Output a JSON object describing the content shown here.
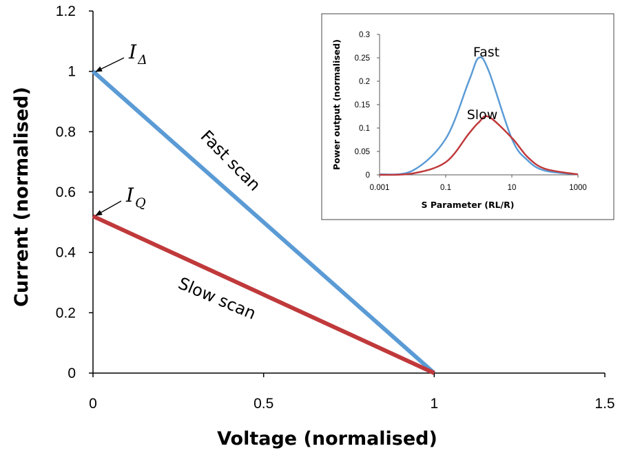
{
  "chart_data": [
    {
      "type": "line",
      "xlabel": "Voltage (normalised)",
      "ylabel": "Current (normalised)",
      "xlim": [
        0,
        1.5
      ],
      "ylim": [
        0,
        1.2
      ],
      "x_ticks": [
        "0",
        "0.5",
        "1",
        "1.5"
      ],
      "y_ticks": [
        "0",
        "0.2",
        "0.4",
        "0.6",
        "0.8",
        "1",
        "1.2"
      ],
      "grid": false,
      "series": [
        {
          "color": "#5b9bd5",
          "x": [
            0,
            1
          ],
          "y": [
            1.0,
            0.0
          ]
        },
        {
          "color": "#c0393b",
          "x": [
            0,
            1
          ],
          "y": [
            0.52,
            0.0
          ]
        }
      ],
      "annotations": [
        {
          "text": "Fast scan",
          "series": 0
        },
        {
          "text": "Slow scan",
          "series": 1
        },
        {
          "label": "I",
          "subscript": "Δ",
          "points_to": [
            0,
            1.0
          ]
        },
        {
          "label": "I",
          "subscript": "Q",
          "points_to": [
            0,
            0.52
          ]
        }
      ]
    },
    {
      "type": "line",
      "xlabel": "S Parameter (RL/R)",
      "ylabel": "Power output (normalised)",
      "x_scale": "log",
      "xlim": [
        0.001,
        1000
      ],
      "ylim": [
        0,
        0.3
      ],
      "x_ticks": [
        "0.001",
        "0.1",
        "10",
        "1000"
      ],
      "y_ticks": [
        "0",
        "0.05",
        "0.1",
        "0.15",
        "0.2",
        "0.25",
        "0.3"
      ],
      "grid": false,
      "series": [
        {
          "name": "Fast",
          "color": "#5b9bd5",
          "x": [
            0.001,
            0.01,
            0.1,
            0.5,
            1,
            2,
            10,
            30,
            100,
            1000
          ],
          "y": [
            0.001,
            0.009,
            0.077,
            0.2,
            0.25,
            0.222,
            0.077,
            0.031,
            0.009,
            0.001
          ]
        },
        {
          "name": "Slow",
          "color": "#c0393b",
          "x": [
            0.001,
            0.01,
            0.1,
            0.5,
            1,
            2,
            10,
            30,
            100,
            1000
          ],
          "y": [
            0.0,
            0.003,
            0.027,
            0.088,
            0.112,
            0.124,
            0.079,
            0.038,
            0.013,
            0.001
          ]
        }
      ]
    }
  ]
}
